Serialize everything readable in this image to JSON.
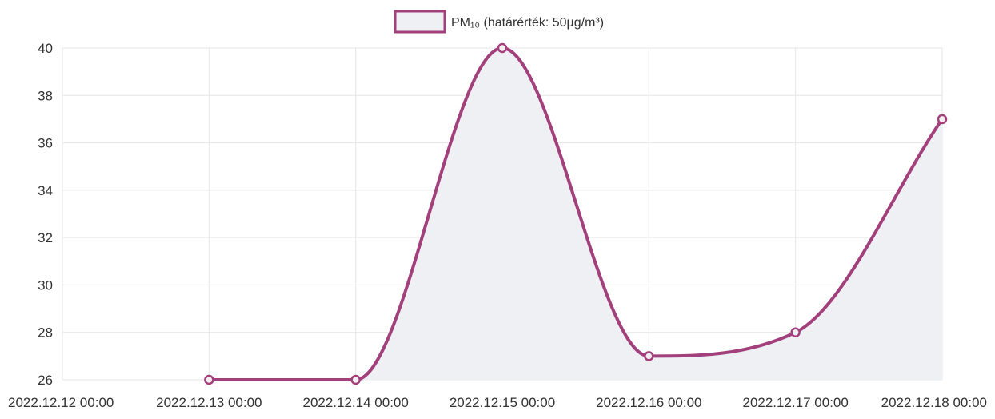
{
  "chart_data": {
    "type": "line",
    "title": "",
    "xlabel": "",
    "ylabel": "",
    "categories": [
      "2022.12.12 00:00",
      "2022.12.13 00:00",
      "2022.12.14 00:00",
      "2022.12.15 00:00",
      "2022.12.16 00:00",
      "2022.12.17 00:00",
      "2022.12.18 00:00"
    ],
    "ylim": [
      26,
      40
    ],
    "yticks": [
      26,
      28,
      30,
      32,
      34,
      36,
      38,
      40
    ],
    "grid": true,
    "legend_position": "top-center",
    "series": [
      {
        "name": "PM₁₀ (határérték: 50µg/m³)",
        "color": "#a2407c",
        "fill": "#eef0f4",
        "values": [
          null,
          26,
          26,
          40,
          27,
          28,
          37
        ]
      }
    ]
  }
}
